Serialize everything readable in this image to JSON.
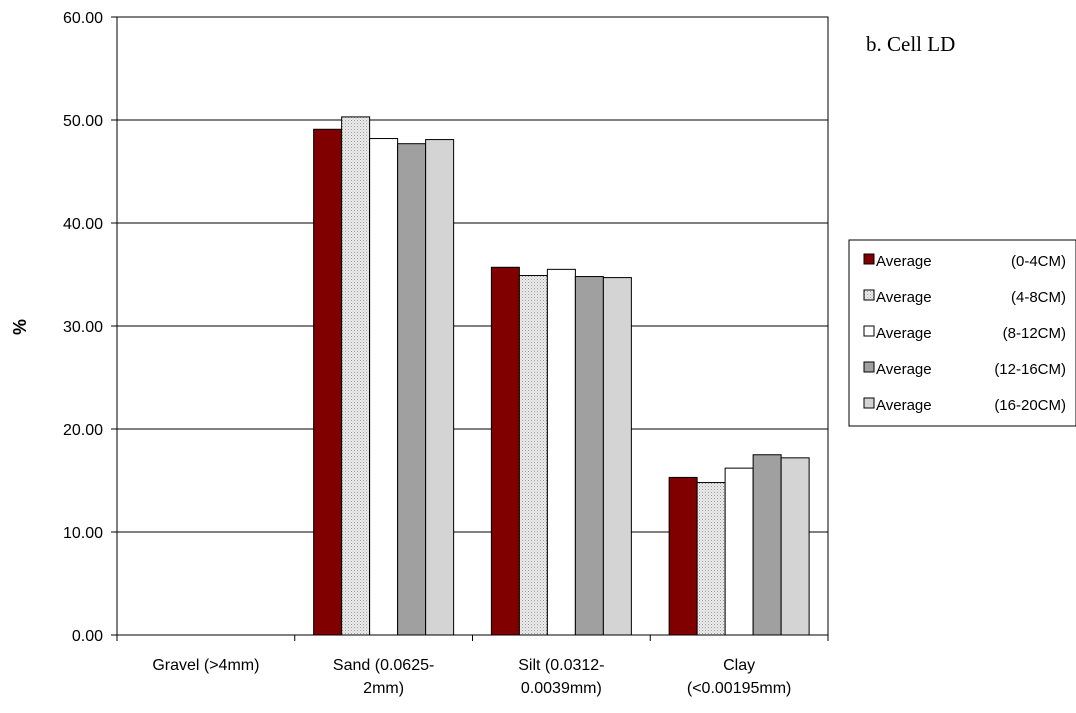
{
  "chart_data": {
    "type": "bar",
    "title": "b.  Cell LD",
    "xlabel": "",
    "ylabel": "%",
    "ylim": [
      0,
      60
    ],
    "yticks": [
      "0.00",
      "10.00",
      "20.00",
      "30.00",
      "40.00",
      "50.00",
      "60.00"
    ],
    "categories": [
      [
        "Gravel (>4mm)"
      ],
      [
        "Sand (0.0625-",
        "2mm)"
      ],
      [
        "Silt (0.0312-",
        "0.0039mm)"
      ],
      [
        "Clay",
        "(<0.00195mm)"
      ]
    ],
    "series": [
      {
        "name": "Average",
        "range": "(0-4CM)",
        "values": [
          0,
          49.1,
          35.7,
          15.3
        ],
        "color": "#800000",
        "pattern": "solid"
      },
      {
        "name": "Average",
        "range": "(4-8CM)",
        "values": [
          0,
          50.3,
          34.9,
          14.8
        ],
        "color": "#e0e0e0",
        "pattern": "dots"
      },
      {
        "name": "Average",
        "range": "(8-12CM)",
        "values": [
          0,
          48.2,
          35.5,
          16.2
        ],
        "color": "#ffffff",
        "pattern": "solid"
      },
      {
        "name": "Average",
        "range": "(12-16CM)",
        "values": [
          0,
          47.7,
          34.8,
          17.5
        ],
        "color": "#a0a0a0",
        "pattern": "solid"
      },
      {
        "name": "Average",
        "range": "(16-20CM)",
        "values": [
          0,
          48.1,
          34.7,
          17.2
        ],
        "color": "#d4d4d4",
        "pattern": "solid"
      }
    ],
    "grid": true,
    "legend_position": "right"
  }
}
